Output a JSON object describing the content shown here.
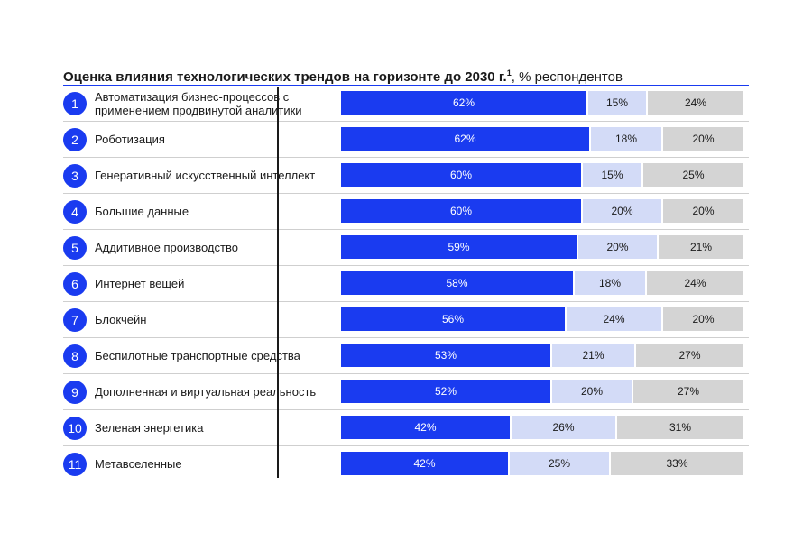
{
  "title": {
    "bold": "Оценка влияния технологических трендов на горизонте до 2030 г.",
    "footnote": "1",
    "rest": ", % респондентов"
  },
  "colors": {
    "segment_1": "#1a3bf0",
    "segment_2": "#d3dbf7",
    "segment_3": "#d4d4d4",
    "badge": "#1a3bf0"
  },
  "chart_data": {
    "type": "bar",
    "orientation": "horizontal",
    "stacked": true,
    "percent": true,
    "title": "Оценка влияния технологических трендов на горизонте до 2030 г., % респондентов",
    "legend": "none",
    "grid": false,
    "categories": [
      "Автоматизация бизнес-процессов с применением продвинутой аналитики",
      "Роботизация",
      "Генеративный искусственный интеллект",
      "Большие данные",
      "Аддитивное производство",
      "Интернет вещей",
      "Блокчейн",
      "Беспилотные транспортные средства",
      "Дополненная и виртуальная реальность",
      "Зеленая энергетика",
      "Метавселенные"
    ],
    "numbers": [
      "1",
      "2",
      "3",
      "4",
      "5",
      "6",
      "7",
      "8",
      "9",
      "10",
      "11"
    ],
    "series": [
      {
        "values": [
          62,
          62,
          60,
          60,
          59,
          58,
          56,
          53,
          52,
          42,
          42
        ]
      },
      {
        "values": [
          15,
          18,
          15,
          20,
          20,
          18,
          24,
          21,
          20,
          26,
          25
        ]
      },
      {
        "values": [
          24,
          20,
          25,
          20,
          21,
          24,
          20,
          27,
          27,
          31,
          33
        ]
      }
    ]
  }
}
